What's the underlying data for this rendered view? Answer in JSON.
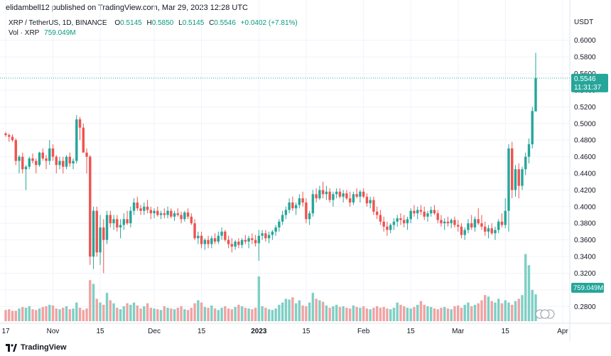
{
  "header": {
    "published": "elidambell12 published on TradingView.com, Mar 29, 2023 12:28 UTC"
  },
  "legend": {
    "symbol": "XRP / TetherUS, 1D, BINANCE",
    "open_label": "O",
    "open": "0.5145",
    "high_label": "H",
    "high": "0.5850",
    "low_label": "L",
    "low": "0.5145",
    "close_label": "C",
    "close": "0.5546",
    "change": "+0.0402 (+7.81%)",
    "vol_label": "Vol · XRP",
    "vol": "759.049M"
  },
  "price_axis": {
    "currency": "USDT",
    "last_price": "0.5546",
    "countdown": "11:31:37",
    "last_volume": "759.049M"
  },
  "footer": {
    "brand": "TradingView"
  },
  "colors": {
    "up": "#26a69a",
    "down": "#ef5350",
    "up_vol": "#7fcfc5",
    "down_vol": "#f0a3a3",
    "grid": "#f0f3fa",
    "text": "#131722"
  },
  "chart_data": {
    "type": "candlestick",
    "ylim": [
      0.27,
      0.61
    ],
    "yticks": [
      "0.2800",
      "0.3000",
      "0.3200",
      "0.3400",
      "0.3600",
      "0.3800",
      "0.4000",
      "0.4200",
      "0.4400",
      "0.4600",
      "0.4800",
      "0.5000",
      "0.5200",
      "0.5400",
      "0.5600",
      "0.5800",
      "0.6000"
    ],
    "xticks": [
      {
        "label": "17",
        "i": 0
      },
      {
        "label": "Nov",
        "i": 14
      },
      {
        "label": "15",
        "i": 28
      },
      {
        "label": "Dec",
        "i": 44
      },
      {
        "label": "15",
        "i": 58
      },
      {
        "label": "2023",
        "i": 75
      },
      {
        "label": "15",
        "i": 89
      },
      {
        "label": "Feb",
        "i": 106
      },
      {
        "label": "15",
        "i": 120
      },
      {
        "label": "Mar",
        "i": 134
      },
      {
        "label": "15",
        "i": 148
      },
      {
        "label": "Apr",
        "i": 165
      }
    ],
    "candles": [
      [
        0.488,
        0.49,
        0.484,
        0.486
      ],
      [
        0.486,
        0.488,
        0.478,
        0.484
      ],
      [
        0.484,
        0.487,
        0.478,
        0.48
      ],
      [
        0.48,
        0.482,
        0.45,
        0.455
      ],
      [
        0.455,
        0.462,
        0.44,
        0.46
      ],
      [
        0.46,
        0.465,
        0.44,
        0.445
      ],
      [
        0.445,
        0.45,
        0.42,
        0.448
      ],
      [
        0.448,
        0.46,
        0.445,
        0.458
      ],
      [
        0.458,
        0.464,
        0.452,
        0.455
      ],
      [
        0.455,
        0.458,
        0.44,
        0.45
      ],
      [
        0.45,
        0.466,
        0.448,
        0.465
      ],
      [
        0.465,
        0.47,
        0.455,
        0.458
      ],
      [
        0.458,
        0.462,
        0.445,
        0.455
      ],
      [
        0.455,
        0.48,
        0.45,
        0.47
      ],
      [
        0.47,
        0.475,
        0.455,
        0.46
      ],
      [
        0.46,
        0.462,
        0.44,
        0.45
      ],
      [
        0.45,
        0.46,
        0.445,
        0.455
      ],
      [
        0.455,
        0.46,
        0.44,
        0.448
      ],
      [
        0.448,
        0.462,
        0.445,
        0.46
      ],
      [
        0.46,
        0.465,
        0.448,
        0.452
      ],
      [
        0.452,
        0.458,
        0.445,
        0.455
      ],
      [
        0.455,
        0.51,
        0.452,
        0.505
      ],
      [
        0.505,
        0.508,
        0.48,
        0.495
      ],
      [
        0.495,
        0.5,
        0.468,
        0.465
      ],
      [
        0.465,
        0.47,
        0.44,
        0.46
      ],
      [
        0.46,
        0.462,
        0.33,
        0.34
      ],
      [
        0.34,
        0.4,
        0.325,
        0.395
      ],
      [
        0.395,
        0.4,
        0.34,
        0.345
      ],
      [
        0.345,
        0.39,
        0.33,
        0.375
      ],
      [
        0.375,
        0.385,
        0.32,
        0.36
      ],
      [
        0.36,
        0.395,
        0.355,
        0.39
      ],
      [
        0.39,
        0.395,
        0.375,
        0.38
      ],
      [
        0.38,
        0.39,
        0.372,
        0.385
      ],
      [
        0.385,
        0.39,
        0.37,
        0.375
      ],
      [
        0.375,
        0.385,
        0.362,
        0.378
      ],
      [
        0.378,
        0.392,
        0.372,
        0.385
      ],
      [
        0.385,
        0.395,
        0.378,
        0.38
      ],
      [
        0.38,
        0.4,
        0.375,
        0.395
      ],
      [
        0.395,
        0.41,
        0.39,
        0.405
      ],
      [
        0.405,
        0.412,
        0.395,
        0.398
      ],
      [
        0.398,
        0.402,
        0.39,
        0.395
      ],
      [
        0.395,
        0.405,
        0.39,
        0.4
      ],
      [
        0.4,
        0.408,
        0.392,
        0.396
      ],
      [
        0.396,
        0.4,
        0.385,
        0.392
      ],
      [
        0.392,
        0.398,
        0.386,
        0.395
      ],
      [
        0.395,
        0.4,
        0.388,
        0.39
      ],
      [
        0.39,
        0.395,
        0.385,
        0.392
      ],
      [
        0.392,
        0.398,
        0.386,
        0.39
      ],
      [
        0.39,
        0.4,
        0.386,
        0.395
      ],
      [
        0.395,
        0.398,
        0.386,
        0.388
      ],
      [
        0.388,
        0.395,
        0.383,
        0.392
      ],
      [
        0.392,
        0.398,
        0.388,
        0.39
      ],
      [
        0.39,
        0.394,
        0.38,
        0.385
      ],
      [
        0.385,
        0.395,
        0.382,
        0.393
      ],
      [
        0.393,
        0.398,
        0.385,
        0.388
      ],
      [
        0.388,
        0.392,
        0.378,
        0.38
      ],
      [
        0.38,
        0.385,
        0.36,
        0.362
      ],
      [
        0.362,
        0.37,
        0.355,
        0.365
      ],
      [
        0.365,
        0.37,
        0.35,
        0.355
      ],
      [
        0.355,
        0.362,
        0.348,
        0.36
      ],
      [
        0.36,
        0.365,
        0.35,
        0.355
      ],
      [
        0.355,
        0.365,
        0.35,
        0.362
      ],
      [
        0.362,
        0.368,
        0.355,
        0.358
      ],
      [
        0.358,
        0.37,
        0.355,
        0.365
      ],
      [
        0.365,
        0.375,
        0.36,
        0.37
      ],
      [
        0.37,
        0.372,
        0.358,
        0.36
      ],
      [
        0.36,
        0.365,
        0.35,
        0.355
      ],
      [
        0.355,
        0.362,
        0.345,
        0.352
      ],
      [
        0.352,
        0.36,
        0.348,
        0.358
      ],
      [
        0.358,
        0.362,
        0.35,
        0.354
      ],
      [
        0.354,
        0.362,
        0.35,
        0.36
      ],
      [
        0.36,
        0.366,
        0.355,
        0.358
      ],
      [
        0.358,
        0.365,
        0.35,
        0.362
      ],
      [
        0.362,
        0.368,
        0.355,
        0.36
      ],
      [
        0.36,
        0.366,
        0.352,
        0.356
      ],
      [
        0.356,
        0.372,
        0.335,
        0.365
      ],
      [
        0.365,
        0.372,
        0.36,
        0.368
      ],
      [
        0.368,
        0.372,
        0.358,
        0.362
      ],
      [
        0.362,
        0.37,
        0.356,
        0.366
      ],
      [
        0.366,
        0.372,
        0.36,
        0.37
      ],
      [
        0.37,
        0.378,
        0.365,
        0.375
      ],
      [
        0.375,
        0.385,
        0.37,
        0.382
      ],
      [
        0.382,
        0.395,
        0.378,
        0.39
      ],
      [
        0.39,
        0.4,
        0.385,
        0.396
      ],
      [
        0.396,
        0.41,
        0.392,
        0.405
      ],
      [
        0.405,
        0.412,
        0.395,
        0.398
      ],
      [
        0.398,
        0.405,
        0.39,
        0.402
      ],
      [
        0.402,
        0.415,
        0.398,
        0.41
      ],
      [
        0.41,
        0.418,
        0.4,
        0.405
      ],
      [
        0.405,
        0.41,
        0.38,
        0.385
      ],
      [
        0.385,
        0.395,
        0.378,
        0.392
      ],
      [
        0.392,
        0.42,
        0.388,
        0.415
      ],
      [
        0.415,
        0.422,
        0.405,
        0.41
      ],
      [
        0.41,
        0.425,
        0.408,
        0.42
      ],
      [
        0.42,
        0.43,
        0.41,
        0.415
      ],
      [
        0.415,
        0.425,
        0.408,
        0.418
      ],
      [
        0.418,
        0.422,
        0.405,
        0.408
      ],
      [
        0.408,
        0.418,
        0.4,
        0.415
      ],
      [
        0.415,
        0.422,
        0.41,
        0.418
      ],
      [
        0.418,
        0.422,
        0.41,
        0.412
      ],
      [
        0.412,
        0.42,
        0.405,
        0.416
      ],
      [
        0.416,
        0.42,
        0.408,
        0.41
      ],
      [
        0.41,
        0.418,
        0.4,
        0.405
      ],
      [
        0.405,
        0.418,
        0.402,
        0.415
      ],
      [
        0.415,
        0.422,
        0.41,
        0.412
      ],
      [
        0.412,
        0.42,
        0.405,
        0.418
      ],
      [
        0.418,
        0.422,
        0.41,
        0.412
      ],
      [
        0.412,
        0.416,
        0.4,
        0.404
      ],
      [
        0.404,
        0.412,
        0.398,
        0.408
      ],
      [
        0.408,
        0.412,
        0.39,
        0.394
      ],
      [
        0.394,
        0.4,
        0.385,
        0.39
      ],
      [
        0.39,
        0.396,
        0.378,
        0.382
      ],
      [
        0.382,
        0.388,
        0.37,
        0.376
      ],
      [
        0.376,
        0.382,
        0.365,
        0.372
      ],
      [
        0.372,
        0.38,
        0.368,
        0.378
      ],
      [
        0.378,
        0.386,
        0.372,
        0.382
      ],
      [
        0.382,
        0.39,
        0.376,
        0.386
      ],
      [
        0.386,
        0.392,
        0.378,
        0.384
      ],
      [
        0.384,
        0.39,
        0.375,
        0.38
      ],
      [
        0.38,
        0.388,
        0.372,
        0.385
      ],
      [
        0.385,
        0.398,
        0.38,
        0.395
      ],
      [
        0.395,
        0.402,
        0.388,
        0.392
      ],
      [
        0.392,
        0.4,
        0.385,
        0.396
      ],
      [
        0.396,
        0.402,
        0.39,
        0.394
      ],
      [
        0.394,
        0.4,
        0.384,
        0.388
      ],
      [
        0.388,
        0.395,
        0.382,
        0.392
      ],
      [
        0.392,
        0.4,
        0.388,
        0.396
      ],
      [
        0.396,
        0.402,
        0.39,
        0.392
      ],
      [
        0.392,
        0.396,
        0.38,
        0.384
      ],
      [
        0.384,
        0.39,
        0.376,
        0.38
      ],
      [
        0.38,
        0.386,
        0.372,
        0.382
      ],
      [
        0.382,
        0.388,
        0.376,
        0.38
      ],
      [
        0.38,
        0.386,
        0.374,
        0.384
      ],
      [
        0.384,
        0.388,
        0.375,
        0.378
      ],
      [
        0.378,
        0.384,
        0.37,
        0.376
      ],
      [
        0.376,
        0.38,
        0.362,
        0.366
      ],
      [
        0.366,
        0.375,
        0.36,
        0.372
      ],
      [
        0.372,
        0.385,
        0.368,
        0.38
      ],
      [
        0.38,
        0.39,
        0.372,
        0.375
      ],
      [
        0.375,
        0.388,
        0.37,
        0.385
      ],
      [
        0.385,
        0.398,
        0.378,
        0.38
      ],
      [
        0.38,
        0.39,
        0.372,
        0.376
      ],
      [
        0.376,
        0.382,
        0.365,
        0.37
      ],
      [
        0.37,
        0.378,
        0.362,
        0.374
      ],
      [
        0.374,
        0.38,
        0.366,
        0.368
      ],
      [
        0.368,
        0.376,
        0.36,
        0.372
      ],
      [
        0.372,
        0.385,
        0.368,
        0.382
      ],
      [
        0.382,
        0.392,
        0.375,
        0.378
      ],
      [
        0.378,
        0.41,
        0.374,
        0.395
      ],
      [
        0.395,
        0.475,
        0.37,
        0.47
      ],
      [
        0.47,
        0.478,
        0.41,
        0.42
      ],
      [
        0.42,
        0.45,
        0.412,
        0.445
      ],
      [
        0.445,
        0.452,
        0.41,
        0.425
      ],
      [
        0.425,
        0.448,
        0.42,
        0.445
      ],
      [
        0.445,
        0.465,
        0.438,
        0.46
      ],
      [
        0.46,
        0.482,
        0.452,
        0.475
      ],
      [
        0.475,
        0.52,
        0.47,
        0.515
      ],
      [
        0.5145,
        0.585,
        0.5145,
        0.5546
      ]
    ],
    "volume_levels": [
      0.15,
      0.16,
      0.14,
      0.14,
      0.17,
      0.19,
      0.18,
      0.2,
      0.16,
      0.15,
      0.17,
      0.19,
      0.2,
      0.22,
      0.21,
      0.17,
      0.16,
      0.18,
      0.2,
      0.16,
      0.17,
      0.25,
      0.18,
      0.15,
      0.17,
      0.55,
      0.5,
      0.3,
      0.25,
      0.22,
      0.38,
      0.28,
      0.24,
      0.18,
      0.16,
      0.2,
      0.24,
      0.22,
      0.25,
      0.21,
      0.17,
      0.2,
      0.24,
      0.18,
      0.17,
      0.16,
      0.15,
      0.2,
      0.18,
      0.17,
      0.16,
      0.18,
      0.2,
      0.16,
      0.15,
      0.18,
      0.24,
      0.28,
      0.25,
      0.19,
      0.18,
      0.21,
      0.17,
      0.15,
      0.18,
      0.2,
      0.17,
      0.16,
      0.19,
      0.22,
      0.2,
      0.18,
      0.17,
      0.16,
      0.18,
      0.6,
      0.2,
      0.18,
      0.16,
      0.15,
      0.17,
      0.22,
      0.25,
      0.3,
      0.29,
      0.32,
      0.24,
      0.28,
      0.21,
      0.2,
      0.25,
      0.38,
      0.3,
      0.28,
      0.26,
      0.21,
      0.18,
      0.2,
      0.22,
      0.19,
      0.2,
      0.18,
      0.17,
      0.21,
      0.19,
      0.18,
      0.2,
      0.17,
      0.16,
      0.18,
      0.2,
      0.18,
      0.19,
      0.17,
      0.16,
      0.18,
      0.25,
      0.22,
      0.2,
      0.18,
      0.17,
      0.19,
      0.22,
      0.27,
      0.22,
      0.2,
      0.19,
      0.17,
      0.16,
      0.18,
      0.19,
      0.17,
      0.16,
      0.2,
      0.21,
      0.18,
      0.22,
      0.25,
      0.2,
      0.22,
      0.24,
      0.28,
      0.35,
      0.33,
      0.27,
      0.25,
      0.3,
      0.24,
      0.28,
      0.25,
      0.22,
      0.27,
      0.3,
      0.35,
      0.9,
      0.75,
      0.42,
      0.36,
      0.28,
      0.2,
      0.52,
      0.45,
      0.6,
      0.38
    ]
  }
}
